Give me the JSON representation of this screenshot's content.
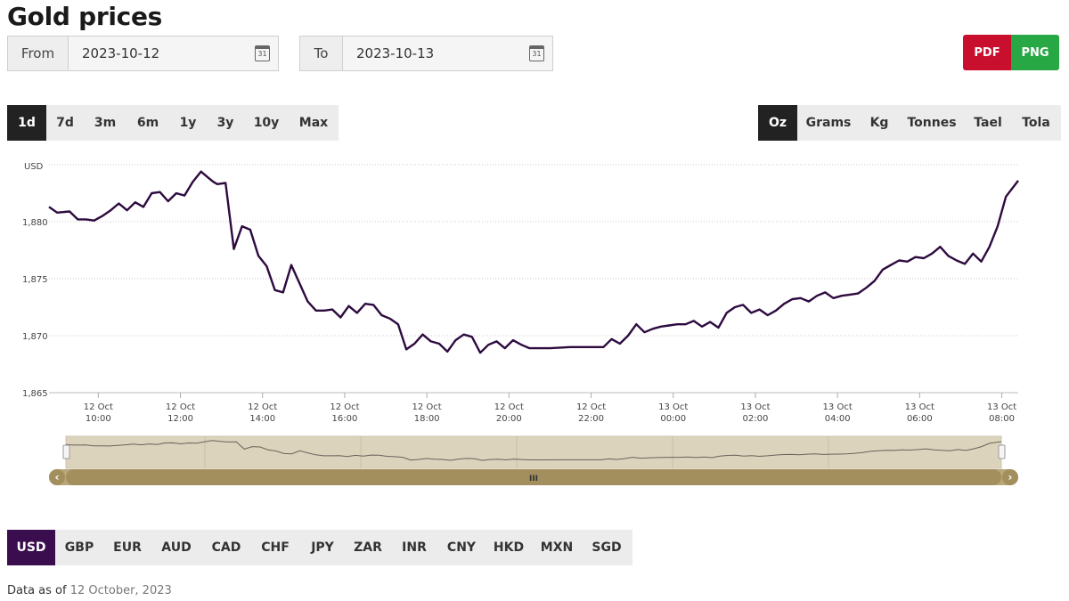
{
  "page": {
    "title": "Gold prices"
  },
  "date_range": {
    "from_label": "From",
    "from_value": "2023-10-12",
    "to_label": "To",
    "to_value": "2023-10-13",
    "calendar_glyph": "31"
  },
  "export": {
    "pdf_label": "PDF",
    "png_label": "PNG",
    "pdf_color": "#c8102e",
    "png_color": "#28a745"
  },
  "ranges": [
    {
      "label": "1d",
      "active": true
    },
    {
      "label": "7d",
      "active": false
    },
    {
      "label": "3m",
      "active": false
    },
    {
      "label": "6m",
      "active": false
    },
    {
      "label": "1y",
      "active": false
    },
    {
      "label": "3y",
      "active": false
    },
    {
      "label": "10y",
      "active": false
    },
    {
      "label": "Max",
      "active": false
    }
  ],
  "units": [
    {
      "label": "Oz",
      "active": true
    },
    {
      "label": "Grams",
      "active": false
    },
    {
      "label": "Kg",
      "active": false
    },
    {
      "label": "Tonnes",
      "active": false
    },
    {
      "label": "Tael",
      "active": false
    },
    {
      "label": "Tola",
      "active": false
    }
  ],
  "currencies": [
    {
      "label": "USD",
      "active": true
    },
    {
      "label": "GBP",
      "active": false
    },
    {
      "label": "EUR",
      "active": false
    },
    {
      "label": "AUD",
      "active": false
    },
    {
      "label": "CAD",
      "active": false
    },
    {
      "label": "CHF",
      "active": false
    },
    {
      "label": "JPY",
      "active": false
    },
    {
      "label": "ZAR",
      "active": false
    },
    {
      "label": "INR",
      "active": false
    },
    {
      "label": "CNY",
      "active": false
    },
    {
      "label": "HKD",
      "active": false
    },
    {
      "label": "MXN",
      "active": false
    },
    {
      "label": "SGD",
      "active": false
    }
  ],
  "navigator": {
    "handle_glyph": "III",
    "left_arrow": "‹",
    "right_arrow": "›"
  },
  "footer": {
    "prefix": "Data as of",
    "date": "12 October, 2023"
  },
  "chart_data": {
    "type": "line",
    "ylabel": "USD",
    "ylim": [
      1865,
      1885
    ],
    "yticks": [
      1865,
      1870,
      1875,
      1880
    ],
    "ytick_labels": [
      "1,865",
      "1,870",
      "1,875",
      "1,880"
    ],
    "grid": true,
    "xlim": [
      8.8,
      32.4
    ],
    "xtick_positions": [
      10,
      12,
      14,
      16,
      18,
      20,
      22,
      24,
      26,
      28,
      30,
      32
    ],
    "xtick_labels": [
      [
        "12 Oct",
        "10:00"
      ],
      [
        "12 Oct",
        "12:00"
      ],
      [
        "12 Oct",
        "14:00"
      ],
      [
        "12 Oct",
        "16:00"
      ],
      [
        "12 Oct",
        "18:00"
      ],
      [
        "12 Oct",
        "20:00"
      ],
      [
        "12 Oct",
        "22:00"
      ],
      [
        "13 Oct",
        "00:00"
      ],
      [
        "13 Oct",
        "02:00"
      ],
      [
        "13 Oct",
        "04:00"
      ],
      [
        "13 Oct",
        "06:00"
      ],
      [
        "13 Oct",
        "08:00"
      ]
    ],
    "line_color": "#2d0a3f",
    "series": [
      {
        "x": [
          8.8,
          9.0,
          9.3,
          9.5,
          9.7,
          9.9,
          10.1,
          10.3,
          10.5,
          10.7,
          10.9,
          11.1,
          11.3,
          11.5,
          11.7,
          11.9,
          12.1,
          12.3,
          12.5,
          12.7,
          12.8,
          12.9,
          13.1,
          13.3,
          13.5,
          13.7,
          13.9,
          14.1,
          14.3,
          14.5,
          14.7,
          14.9,
          15.1,
          15.3,
          15.5,
          15.7,
          15.9,
          16.1,
          16.3,
          16.5,
          16.7,
          16.9,
          17.1,
          17.3,
          17.5,
          17.7,
          17.9,
          18.1,
          18.3,
          18.5,
          18.7,
          18.9,
          19.1,
          19.3,
          19.5,
          19.7,
          19.9,
          20.1,
          20.3,
          20.5,
          21.0,
          21.5,
          22.0,
          22.3,
          22.5,
          22.7,
          22.9,
          23.1,
          23.3,
          23.5,
          23.7,
          23.9,
          24.1,
          24.3,
          24.5,
          24.7,
          24.9,
          25.1,
          25.3,
          25.5,
          25.7,
          25.9,
          26.1,
          26.3,
          26.5,
          26.7,
          26.9,
          27.1,
          27.3,
          27.5,
          27.7,
          27.9,
          28.1,
          28.3,
          28.5,
          28.7,
          28.9,
          29.1,
          29.3,
          29.5,
          29.7,
          29.9,
          30.1,
          30.3,
          30.5,
          30.7,
          30.9,
          31.1,
          31.3,
          31.5,
          31.7,
          31.9,
          32.1,
          32.4
        ],
        "values": [
          1881.3,
          1880.8,
          1880.9,
          1880.2,
          1880.2,
          1880.1,
          1880.5,
          1881.0,
          1881.6,
          1881.0,
          1881.7,
          1881.3,
          1882.5,
          1882.6,
          1881.8,
          1882.5,
          1882.3,
          1883.5,
          1884.4,
          1883.8,
          1883.5,
          1883.3,
          1883.4,
          1877.6,
          1879.6,
          1879.3,
          1877.0,
          1876.1,
          1874.0,
          1873.8,
          1876.2,
          1874.6,
          1873.0,
          1872.2,
          1872.2,
          1872.3,
          1871.6,
          1872.6,
          1872.0,
          1872.8,
          1872.7,
          1871.8,
          1871.5,
          1871.0,
          1868.8,
          1869.3,
          1870.1,
          1869.5,
          1869.3,
          1868.6,
          1869.6,
          1870.1,
          1869.9,
          1868.5,
          1869.2,
          1869.5,
          1868.9,
          1869.6,
          1869.2,
          1868.9,
          1868.9,
          1869.0,
          1869.0,
          1869.0,
          1869.7,
          1869.3,
          1870.0,
          1871.0,
          1870.3,
          1870.6,
          1870.8,
          1870.9,
          1871.0,
          1871.0,
          1871.3,
          1870.8,
          1871.2,
          1870.7,
          1872.0,
          1872.5,
          1872.7,
          1872.0,
          1872.3,
          1871.8,
          1872.2,
          1872.8,
          1873.2,
          1873.3,
          1873.0,
          1873.5,
          1873.8,
          1873.3,
          1873.5,
          1873.6,
          1873.7,
          1874.2,
          1874.8,
          1875.8,
          1876.2,
          1876.6,
          1876.5,
          1876.9,
          1876.8,
          1877.2,
          1877.8,
          1877.0,
          1876.6,
          1876.3,
          1877.2,
          1876.5,
          1877.8,
          1879.6,
          1882.2,
          1883.6
        ]
      }
    ],
    "navigator": {
      "ylim": [
        1865,
        1885
      ]
    }
  }
}
